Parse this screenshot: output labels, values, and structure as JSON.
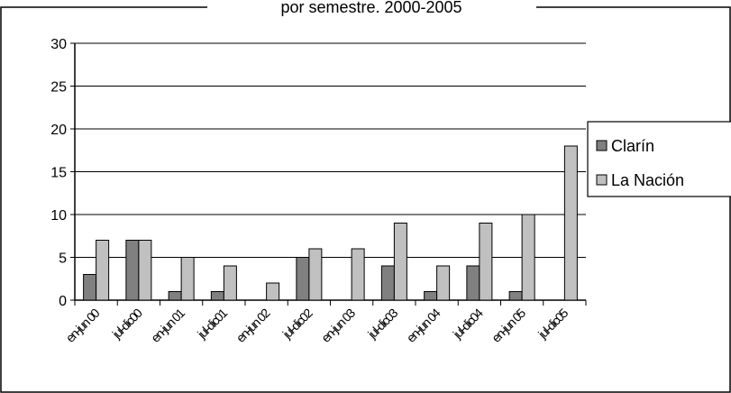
{
  "chart_data": {
    "type": "bar",
    "title": "por semestre. 2000-2005",
    "categories": [
      "en-jun 00",
      "jul-dic00",
      "en-jun 01",
      "jul-dic01",
      "en-jun 02",
      "jul-dic02",
      "en-jun 03",
      "jul-dic03",
      "en-jun 04",
      "jul-dic04",
      "en-jun 05",
      "jul-dic05"
    ],
    "series": [
      {
        "name": "Clarín",
        "color": "#808080",
        "values": [
          3,
          7,
          1,
          1,
          0,
          5,
          0,
          4,
          1,
          4,
          1,
          0
        ]
      },
      {
        "name": "La Nación",
        "color": "#c0c0c0",
        "values": [
          7,
          7,
          5,
          4,
          2,
          6,
          6,
          9,
          4,
          9,
          10,
          18
        ]
      }
    ],
    "ylim": [
      0,
      30
    ],
    "yticks": [
      0,
      5,
      10,
      15,
      20,
      25,
      30
    ],
    "grid": true,
    "legend_position": "right"
  }
}
